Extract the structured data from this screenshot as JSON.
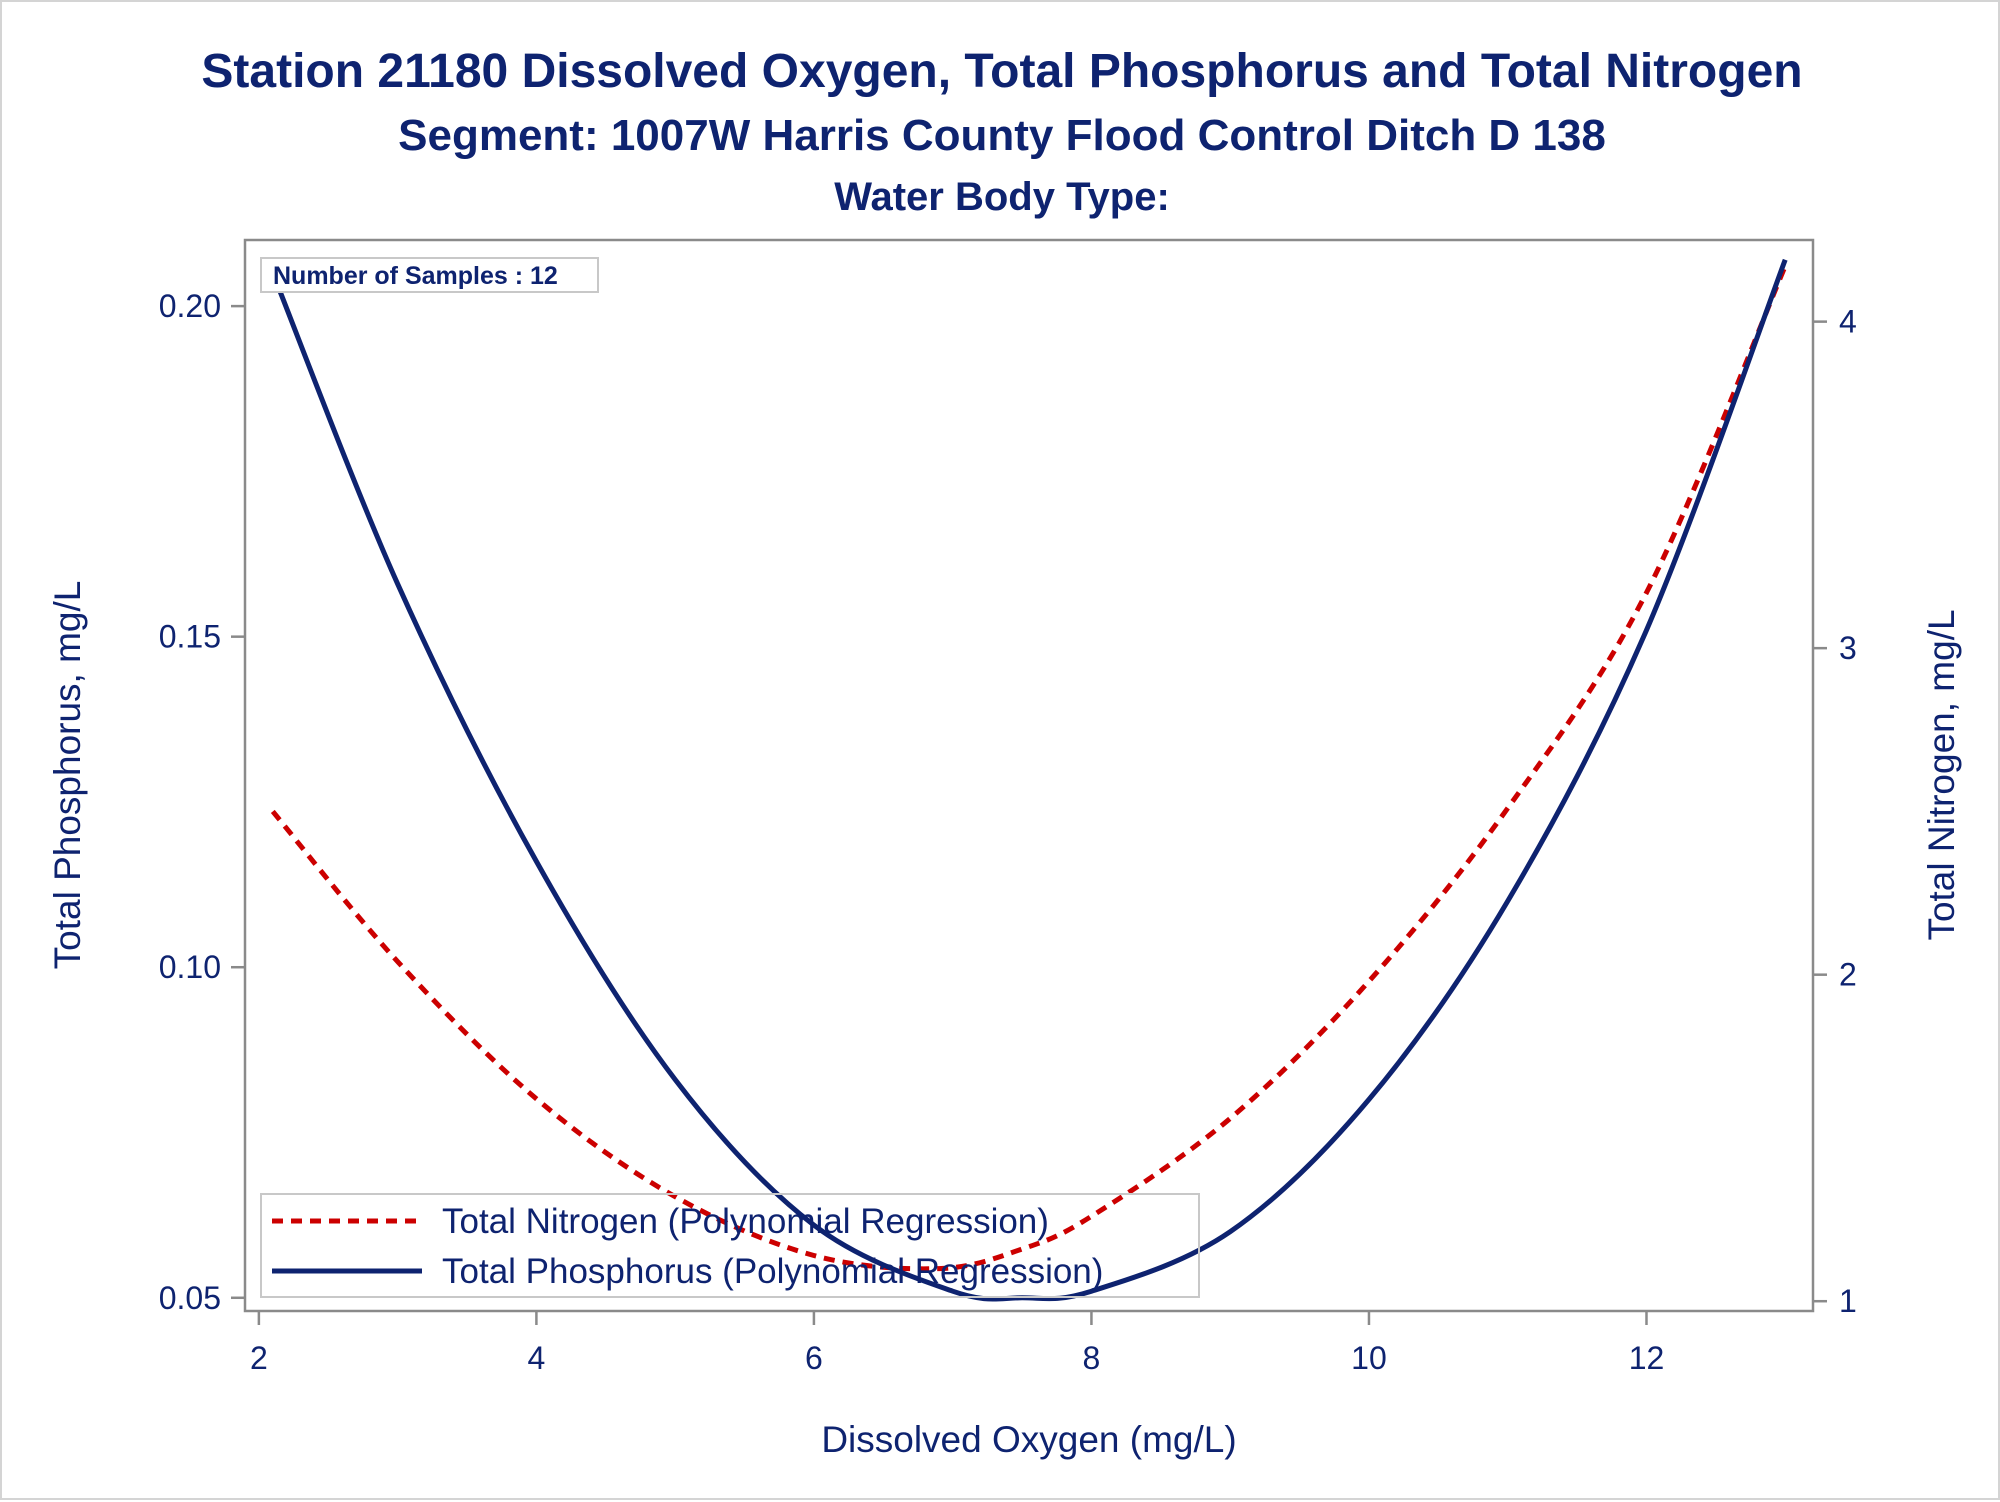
{
  "chart_data": {
    "type": "line",
    "title": "Station 21180  Dissolved Oxygen, Total Phosphorus and Total Nitrogen",
    "subtitle": "Segment: 1007W  Harris County Flood Control Ditch D 138",
    "subtitle2": "Water Body Type:",
    "inset_label": "Number of Samples : 12",
    "xlabel": "Dissolved Oxygen (mg/L)",
    "ylabel_left": "Total Phosphorus, mg/L",
    "ylabel_right": "Total Nitrogen, mg/L",
    "xlim": [
      1.9,
      13.2
    ],
    "ylim_left": [
      0.048,
      0.21
    ],
    "ylim_right": [
      0.97,
      4.25
    ],
    "x_ticks": [
      2,
      4,
      6,
      8,
      10,
      12
    ],
    "y_left_ticks": [
      "0.05",
      "0.10",
      "0.15",
      "0.20"
    ],
    "y_right_ticks": [
      "1",
      "2",
      "3",
      "4"
    ],
    "grid": false,
    "legend_position": "bottom-left",
    "series": [
      {
        "name": "Total Nitrogen (Polynomial Regression)",
        "axis": "right",
        "style": "dashed",
        "color": "#cc0000",
        "x": [
          2.1,
          3.0,
          4.0,
          5.0,
          6.0,
          6.9,
          7.5,
          8.0,
          9.0,
          10.0,
          11.0,
          12.0,
          13.0
        ],
        "y": [
          2.5,
          2.04,
          1.62,
          1.32,
          1.14,
          1.1,
          1.16,
          1.26,
          1.56,
          1.98,
          2.51,
          3.17,
          4.17
        ]
      },
      {
        "name": "Total Phosphorus (Polynomial Regression)",
        "axis": "left",
        "style": "solid",
        "color": "#0e2370",
        "x": [
          2.1,
          3.0,
          4.0,
          5.0,
          6.0,
          7.0,
          7.5,
          8.0,
          9.0,
          10.0,
          11.0,
          12.0,
          13.0
        ],
        "y": [
          0.205,
          0.158,
          0.116,
          0.083,
          0.061,
          0.051,
          0.05,
          0.051,
          0.06,
          0.08,
          0.11,
          0.151,
          0.207
        ]
      }
    ],
    "colors": {
      "text": "#0e2370",
      "axis": "#8a8a8a",
      "nitrogen": "#cc0000",
      "phosphorus": "#0e2370"
    }
  }
}
